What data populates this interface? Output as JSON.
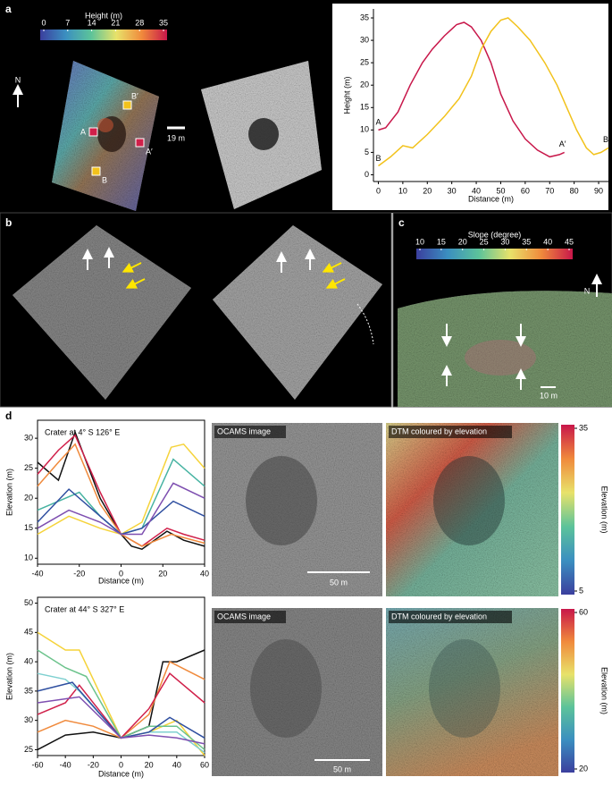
{
  "panel_labels": [
    "a",
    "b",
    "c",
    "d"
  ],
  "panel_a": {
    "colorbar": {
      "title": "Height (m)",
      "ticks": [
        0,
        7,
        14,
        21,
        28,
        35
      ]
    },
    "north": "N",
    "scale_bar": "19 m",
    "map_labels": [
      "A",
      "A′",
      "B",
      "B′"
    ]
  },
  "panel_c": {
    "colorbar": {
      "title": "Slope (degree)",
      "ticks": [
        10,
        15,
        20,
        25,
        30,
        35,
        40,
        45
      ]
    },
    "north": "N",
    "scale_bar": "10 m"
  },
  "panel_d": {
    "rows": [
      {
        "image_title": "OCAMS image",
        "dtm_title": "DTM coloured by elevation",
        "scale_bar": "50 m",
        "colorbar": {
          "title": "Elevation (m)",
          "ticks": [
            35,
            5
          ]
        }
      },
      {
        "image_title": "OCAMS image",
        "dtm_title": "DTM coloured by elevation",
        "scale_bar": "50 m",
        "colorbar": {
          "title": "Elevation (m)",
          "ticks": [
            60,
            20
          ]
        }
      }
    ]
  },
  "chart_data": [
    {
      "type": "line",
      "xlabel": "Distance (m)",
      "ylabel": "Height (m)",
      "xlim": [
        -2,
        94
      ],
      "ylim": [
        -1.5,
        37
      ],
      "xticks": [
        0,
        10,
        20,
        30,
        40,
        50,
        60,
        70,
        80,
        90
      ],
      "yticks": [
        0,
        5,
        10,
        15,
        20,
        25,
        30,
        35
      ],
      "series": [
        {
          "color": "#c8174a",
          "start_label": "A",
          "end_label": "A′",
          "x": [
            0,
            3,
            8,
            13,
            18,
            22,
            27,
            32,
            35,
            38,
            42,
            46,
            50,
            55,
            60,
            65,
            70,
            74,
            76
          ],
          "values": [
            10,
            10.5,
            14,
            20,
            25,
            28,
            31,
            33.5,
            34,
            33,
            30,
            25,
            18,
            12,
            8,
            5.5,
            4,
            4.5,
            5
          ]
        },
        {
          "color": "#f2c21b",
          "start_label": "B",
          "end_label": "B′",
          "x": [
            0,
            5,
            10,
            14,
            20,
            27,
            33,
            38,
            42,
            46,
            50,
            53,
            57,
            62,
            68,
            73,
            77,
            81,
            85,
            88,
            91,
            94
          ],
          "values": [
            2,
            4,
            6.5,
            6,
            9,
            13,
            17,
            22,
            28,
            32,
            34.5,
            35,
            33,
            30,
            25,
            20,
            15,
            10,
            6,
            4.5,
            5,
            6
          ]
        }
      ]
    },
    {
      "type": "line",
      "title": "Crater at 4° S 126° E",
      "xlabel": "Distance (m)",
      "ylabel": "Elevation (m)",
      "xlim": [
        -40,
        40
      ],
      "ylim": [
        9,
        33
      ],
      "xticks": [
        -40,
        -20,
        0,
        20,
        40
      ],
      "yticks": [
        10,
        15,
        20,
        25,
        30
      ],
      "series": [
        {
          "color": "#111111",
          "x": [
            -40,
            -30,
            -22,
            -10,
            0,
            5,
            10,
            22,
            30,
            40
          ],
          "values": [
            26,
            23,
            31,
            20,
            14,
            12,
            11.5,
            14.5,
            13,
            12
          ]
        },
        {
          "color": "#d0204a",
          "x": [
            -40,
            -30,
            -22,
            -10,
            0,
            10,
            22,
            30,
            40
          ],
          "values": [
            24,
            28,
            30.5,
            21,
            14,
            12,
            15,
            14,
            13
          ]
        },
        {
          "color": "#f08a3c",
          "x": [
            -40,
            -30,
            -22,
            -10,
            0,
            10,
            24,
            40
          ],
          "values": [
            22,
            26,
            29,
            19,
            14,
            12,
            14,
            12.5
          ]
        },
        {
          "color": "#f5d33a",
          "x": [
            -40,
            -25,
            -10,
            0,
            10,
            24,
            30,
            40
          ],
          "values": [
            14,
            17,
            15,
            14,
            16,
            28.5,
            29,
            25
          ]
        },
        {
          "color": "#47b3a2",
          "x": [
            -40,
            -20,
            -10,
            0,
            10,
            25,
            40
          ],
          "values": [
            18,
            21,
            17,
            14,
            15,
            26.5,
            22
          ]
        },
        {
          "color": "#2f4fa0",
          "x": [
            -40,
            -25,
            -10,
            0,
            10,
            25,
            40
          ],
          "values": [
            16,
            21.5,
            17,
            14,
            15,
            19.5,
            17
          ]
        },
        {
          "color": "#7e4fb0",
          "x": [
            -40,
            -25,
            -10,
            0,
            10,
            25,
            40
          ],
          "values": [
            15,
            18,
            16,
            14,
            14,
            22.5,
            20
          ]
        }
      ]
    },
    {
      "type": "line",
      "title": "Crater at 44° S 327° E",
      "xlabel": "Distance (m)",
      "ylabel": "Elevation (m)",
      "xlim": [
        -60,
        60
      ],
      "ylim": [
        24,
        51
      ],
      "xticks": [
        -60,
        -40,
        -20,
        0,
        20,
        40,
        60
      ],
      "yticks": [
        25,
        30,
        35,
        40,
        45,
        50
      ],
      "series": [
        {
          "color": "#111111",
          "x": [
            -60,
            -40,
            -20,
            0,
            20,
            30,
            40,
            60
          ],
          "values": [
            25,
            27.5,
            28,
            27,
            29,
            40,
            40,
            42
          ]
        },
        {
          "color": "#f08a3c",
          "x": [
            -60,
            -40,
            -20,
            0,
            20,
            35,
            60
          ],
          "values": [
            28,
            30,
            29,
            27,
            31,
            40,
            37
          ]
        },
        {
          "color": "#d0204a",
          "x": [
            -60,
            -40,
            -30,
            0,
            20,
            35,
            60
          ],
          "values": [
            31,
            33,
            36,
            27,
            32,
            38,
            33
          ]
        },
        {
          "color": "#f5d33a",
          "x": [
            -60,
            -40,
            -30,
            0,
            20,
            40,
            60
          ],
          "values": [
            45,
            42,
            42,
            27,
            28,
            30,
            24
          ]
        },
        {
          "color": "#6cc38c",
          "x": [
            -60,
            -40,
            -25,
            0,
            20,
            40,
            60
          ],
          "values": [
            42,
            39,
            37.5,
            27,
            29,
            29,
            25
          ]
        },
        {
          "color": "#7fd0d0",
          "x": [
            -60,
            -40,
            -30,
            0,
            20,
            40,
            60
          ],
          "values": [
            38,
            37,
            35,
            27,
            28,
            28,
            24.5
          ]
        },
        {
          "color": "#2f4fa0",
          "x": [
            -60,
            -35,
            0,
            20,
            35,
            60
          ],
          "values": [
            35,
            36.5,
            27,
            28,
            30.5,
            27
          ]
        },
        {
          "color": "#7e4fb0",
          "x": [
            -60,
            -30,
            0,
            20,
            40,
            60
          ],
          "values": [
            33,
            34,
            27,
            27.5,
            27,
            26
          ]
        }
      ]
    }
  ]
}
